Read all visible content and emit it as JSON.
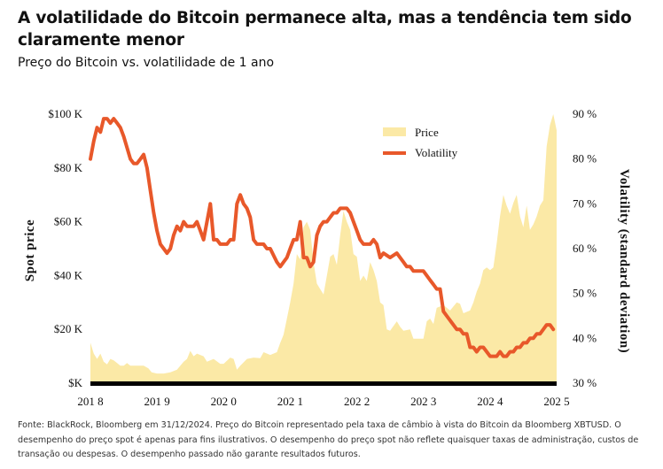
{
  "title": "A volatilidade do Bitcoin permanece alta, mas a tendência tem sido claramente menor",
  "subtitle": "Preço do Bitcoin vs. volatilidade de 1 ano",
  "footnote": "Fonte: BlackRock, Bloomberg em 31/12/2024. Preço do Bitcoin representado pela taxa de câmbio à vista do Bitcoin da Bloomberg XBTUSD. O desempenho do preço spot é apenas para fins ilustrativos. O desempenho do preço spot não reflete quaisquer taxas de administração, custos de transação ou despesas. O desempenho passado não garante resultados futuros.",
  "colors": {
    "price": "#fbe9a6",
    "volatility": "#e8582a",
    "axis": "#000000"
  },
  "chart_data": {
    "type": "area+line",
    "ylabel_left": "Spot price",
    "ylabel_right": "Volatility (standard deviation)",
    "ylim_left": [
      0,
      100000
    ],
    "ylim_right": [
      30,
      90
    ],
    "xlim": [
      2018.0,
      2025.0
    ],
    "left_ticks": [
      {
        "v": 100000,
        "label": "$100 K"
      },
      {
        "v": 80000,
        "label": "$80 K"
      },
      {
        "v": 60000,
        "label": "$60 K"
      },
      {
        "v": 40000,
        "label": "$40 K"
      },
      {
        "v": 20000,
        "label": "$20 K"
      },
      {
        "v": 0,
        "label": "$K"
      }
    ],
    "right_ticks": [
      {
        "v": 90,
        "label": "90 %"
      },
      {
        "v": 80,
        "label": "80 %"
      },
      {
        "v": 70,
        "label": "70 %"
      },
      {
        "v": 60,
        "label": "60 %"
      },
      {
        "v": 50,
        "label": "50 %"
      },
      {
        "v": 40,
        "label": "40 %"
      },
      {
        "v": 30,
        "label": "30 %"
      }
    ],
    "x_ticks": [
      {
        "v": 2018.0,
        "label": "201 8"
      },
      {
        "v": 2019.0,
        "label": "201 9"
      },
      {
        "v": 2020.0,
        "label": "202 0"
      },
      {
        "v": 2021.0,
        "label": "202 1"
      },
      {
        "v": 2022.0,
        "label": "202 2"
      },
      {
        "v": 2023.0,
        "label": "202 3"
      },
      {
        "v": 2024.0,
        "label": "202 4"
      },
      {
        "v": 2025.0,
        "label": "202 5"
      }
    ],
    "legend_position": "top-right",
    "series": [
      {
        "name": "Price",
        "type": "area",
        "axis": "left",
        "points": [
          [
            2018.0,
            15000
          ],
          [
            2018.05,
            11000
          ],
          [
            2018.1,
            9000
          ],
          [
            2018.15,
            11000
          ],
          [
            2018.2,
            8000
          ],
          [
            2018.25,
            7000
          ],
          [
            2018.3,
            9000
          ],
          [
            2018.35,
            8500
          ],
          [
            2018.4,
            7500
          ],
          [
            2018.45,
            6500
          ],
          [
            2018.5,
            6500
          ],
          [
            2018.55,
            7500
          ],
          [
            2018.6,
            6500
          ],
          [
            2018.7,
            6500
          ],
          [
            2018.8,
            6500
          ],
          [
            2018.87,
            5500
          ],
          [
            2018.92,
            4000
          ],
          [
            2019.0,
            3600
          ],
          [
            2019.1,
            3600
          ],
          [
            2019.2,
            4000
          ],
          [
            2019.3,
            5000
          ],
          [
            2019.4,
            8000
          ],
          [
            2019.45,
            9000
          ],
          [
            2019.5,
            12000
          ],
          [
            2019.55,
            10000
          ],
          [
            2019.6,
            11000
          ],
          [
            2019.7,
            10000
          ],
          [
            2019.75,
            8000
          ],
          [
            2019.85,
            9000
          ],
          [
            2019.95,
            7200
          ],
          [
            2020.0,
            7200
          ],
          [
            2020.1,
            9500
          ],
          [
            2020.15,
            9000
          ],
          [
            2020.2,
            5000
          ],
          [
            2020.25,
            6500
          ],
          [
            2020.35,
            9000
          ],
          [
            2020.45,
            9500
          ],
          [
            2020.55,
            9300
          ],
          [
            2020.6,
            11500
          ],
          [
            2020.7,
            10500
          ],
          [
            2020.8,
            11500
          ],
          [
            2020.85,
            15000
          ],
          [
            2020.9,
            18000
          ],
          [
            2020.95,
            24000
          ],
          [
            2021.0,
            30000
          ],
          [
            2021.05,
            37000
          ],
          [
            2021.1,
            48000
          ],
          [
            2021.15,
            46000
          ],
          [
            2021.2,
            58000
          ],
          [
            2021.25,
            60000
          ],
          [
            2021.3,
            57000
          ],
          [
            2021.35,
            45000
          ],
          [
            2021.4,
            37000
          ],
          [
            2021.45,
            35000
          ],
          [
            2021.5,
            33000
          ],
          [
            2021.55,
            40000
          ],
          [
            2021.6,
            47000
          ],
          [
            2021.65,
            48000
          ],
          [
            2021.7,
            44000
          ],
          [
            2021.75,
            55000
          ],
          [
            2021.8,
            64000
          ],
          [
            2021.85,
            60000
          ],
          [
            2021.9,
            57000
          ],
          [
            2021.95,
            48000
          ],
          [
            2022.0,
            47000
          ],
          [
            2022.05,
            38000
          ],
          [
            2022.1,
            40000
          ],
          [
            2022.15,
            38000
          ],
          [
            2022.2,
            45000
          ],
          [
            2022.25,
            42000
          ],
          [
            2022.3,
            38000
          ],
          [
            2022.35,
            30000
          ],
          [
            2022.4,
            29000
          ],
          [
            2022.45,
            20000
          ],
          [
            2022.5,
            19500
          ],
          [
            2022.6,
            23000
          ],
          [
            2022.65,
            21000
          ],
          [
            2022.7,
            19500
          ],
          [
            2022.8,
            20000
          ],
          [
            2022.85,
            16500
          ],
          [
            2022.9,
            16500
          ],
          [
            2023.0,
            16500
          ],
          [
            2023.05,
            23000
          ],
          [
            2023.1,
            24000
          ],
          [
            2023.15,
            22000
          ],
          [
            2023.2,
            28000
          ],
          [
            2023.3,
            29000
          ],
          [
            2023.4,
            27000
          ],
          [
            2023.5,
            30000
          ],
          [
            2023.55,
            29500
          ],
          [
            2023.6,
            26000
          ],
          [
            2023.7,
            27000
          ],
          [
            2023.75,
            30000
          ],
          [
            2023.8,
            34000
          ],
          [
            2023.85,
            37000
          ],
          [
            2023.9,
            42000
          ],
          [
            2023.95,
            43000
          ],
          [
            2024.0,
            42000
          ],
          [
            2024.05,
            43000
          ],
          [
            2024.1,
            52000
          ],
          [
            2024.15,
            62000
          ],
          [
            2024.2,
            70000
          ],
          [
            2024.25,
            66000
          ],
          [
            2024.3,
            63000
          ],
          [
            2024.35,
            67000
          ],
          [
            2024.4,
            70000
          ],
          [
            2024.45,
            62000
          ],
          [
            2024.5,
            58000
          ],
          [
            2024.55,
            66000
          ],
          [
            2024.6,
            57000
          ],
          [
            2024.65,
            59000
          ],
          [
            2024.7,
            62000
          ],
          [
            2024.75,
            66000
          ],
          [
            2024.8,
            68000
          ],
          [
            2024.85,
            88000
          ],
          [
            2024.9,
            96000
          ],
          [
            2024.95,
            100000
          ],
          [
            2025.0,
            94000
          ]
        ]
      },
      {
        "name": "Volatility",
        "type": "line",
        "axis": "right",
        "points": [
          [
            2018.0,
            80
          ],
          [
            2018.05,
            84
          ],
          [
            2018.1,
            87
          ],
          [
            2018.15,
            86
          ],
          [
            2018.2,
            89
          ],
          [
            2018.25,
            89
          ],
          [
            2018.3,
            88
          ],
          [
            2018.35,
            89
          ],
          [
            2018.4,
            88
          ],
          [
            2018.45,
            87
          ],
          [
            2018.5,
            85
          ],
          [
            2018.6,
            80
          ],
          [
            2018.65,
            79
          ],
          [
            2018.7,
            79
          ],
          [
            2018.75,
            80
          ],
          [
            2018.8,
            81
          ],
          [
            2018.85,
            78
          ],
          [
            2018.9,
            73
          ],
          [
            2018.95,
            68
          ],
          [
            2019.0,
            64
          ],
          [
            2019.05,
            61
          ],
          [
            2019.1,
            60
          ],
          [
            2019.15,
            59
          ],
          [
            2019.2,
            60
          ],
          [
            2019.25,
            63
          ],
          [
            2019.3,
            65
          ],
          [
            2019.35,
            64
          ],
          [
            2019.4,
            66
          ],
          [
            2019.45,
            65
          ],
          [
            2019.5,
            65
          ],
          [
            2019.55,
            65
          ],
          [
            2019.6,
            66
          ],
          [
            2019.65,
            64
          ],
          [
            2019.7,
            62
          ],
          [
            2019.75,
            66
          ],
          [
            2019.8,
            70
          ],
          [
            2019.85,
            62
          ],
          [
            2019.9,
            62
          ],
          [
            2019.95,
            61
          ],
          [
            2020.0,
            61
          ],
          [
            2020.05,
            61
          ],
          [
            2020.1,
            62
          ],
          [
            2020.15,
            62
          ],
          [
            2020.2,
            70
          ],
          [
            2020.25,
            72
          ],
          [
            2020.3,
            70
          ],
          [
            2020.35,
            69
          ],
          [
            2020.4,
            67
          ],
          [
            2020.45,
            62
          ],
          [
            2020.5,
            61
          ],
          [
            2020.55,
            61
          ],
          [
            2020.6,
            61
          ],
          [
            2020.65,
            60
          ],
          [
            2020.7,
            60
          ],
          [
            2020.8,
            57
          ],
          [
            2020.85,
            56
          ],
          [
            2020.9,
            57
          ],
          [
            2020.95,
            58
          ],
          [
            2021.0,
            60
          ],
          [
            2021.05,
            62
          ],
          [
            2021.1,
            62
          ],
          [
            2021.15,
            66
          ],
          [
            2021.2,
            58
          ],
          [
            2021.25,
            58
          ],
          [
            2021.3,
            56
          ],
          [
            2021.35,
            57
          ],
          [
            2021.4,
            63
          ],
          [
            2021.45,
            65
          ],
          [
            2021.5,
            66
          ],
          [
            2021.55,
            66
          ],
          [
            2021.6,
            67
          ],
          [
            2021.65,
            68
          ],
          [
            2021.7,
            68
          ],
          [
            2021.75,
            69
          ],
          [
            2021.8,
            69
          ],
          [
            2021.85,
            69
          ],
          [
            2021.9,
            68
          ],
          [
            2021.95,
            66
          ],
          [
            2022.0,
            64
          ],
          [
            2022.05,
            62
          ],
          [
            2022.1,
            61
          ],
          [
            2022.15,
            61
          ],
          [
            2022.2,
            61
          ],
          [
            2022.25,
            62
          ],
          [
            2022.3,
            61
          ],
          [
            2022.35,
            58
          ],
          [
            2022.4,
            59
          ],
          [
            2022.5,
            58
          ],
          [
            2022.6,
            59
          ],
          [
            2022.65,
            58
          ],
          [
            2022.7,
            57
          ],
          [
            2022.75,
            56
          ],
          [
            2022.8,
            56
          ],
          [
            2022.85,
            55
          ],
          [
            2022.9,
            55
          ],
          [
            2022.95,
            55
          ],
          [
            2023.0,
            55
          ],
          [
            2023.05,
            54
          ],
          [
            2023.1,
            53
          ],
          [
            2023.15,
            52
          ],
          [
            2023.2,
            51
          ],
          [
            2023.25,
            51
          ],
          [
            2023.3,
            46
          ],
          [
            2023.35,
            45
          ],
          [
            2023.4,
            44
          ],
          [
            2023.45,
            43
          ],
          [
            2023.5,
            42
          ],
          [
            2023.55,
            42
          ],
          [
            2023.6,
            41
          ],
          [
            2023.65,
            41
          ],
          [
            2023.7,
            38
          ],
          [
            2023.75,
            38
          ],
          [
            2023.8,
            37
          ],
          [
            2023.85,
            38
          ],
          [
            2023.9,
            38
          ],
          [
            2023.95,
            37
          ],
          [
            2024.0,
            36
          ],
          [
            2024.05,
            36
          ],
          [
            2024.1,
            36
          ],
          [
            2024.15,
            37
          ],
          [
            2024.2,
            36
          ],
          [
            2024.25,
            36
          ],
          [
            2024.3,
            37
          ],
          [
            2024.35,
            37
          ],
          [
            2024.4,
            38
          ],
          [
            2024.45,
            38
          ],
          [
            2024.5,
            39
          ],
          [
            2024.55,
            39
          ],
          [
            2024.6,
            40
          ],
          [
            2024.65,
            40
          ],
          [
            2024.7,
            41
          ],
          [
            2024.75,
            41
          ],
          [
            2024.8,
            42
          ],
          [
            2024.85,
            43
          ],
          [
            2024.9,
            43
          ],
          [
            2024.95,
            42
          ]
        ]
      }
    ]
  }
}
